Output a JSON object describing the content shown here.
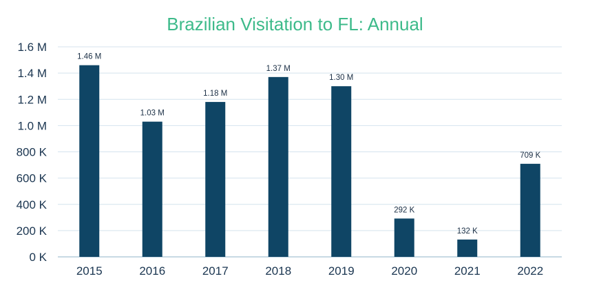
{
  "chart_data": {
    "type": "bar",
    "title": "Brazilian Visitation to FL: Annual",
    "categories": [
      "2015",
      "2016",
      "2017",
      "2018",
      "2019",
      "2020",
      "2021",
      "2022"
    ],
    "values": [
      1460000,
      1030000,
      1180000,
      1370000,
      1300000,
      292000,
      132000,
      709000
    ],
    "data_labels": [
      "1.46 M",
      "1.03 M",
      "1.18 M",
      "1.37 M",
      "1.30 M",
      "292 K",
      "132 K",
      "709 K"
    ],
    "ylim": [
      0,
      1600000
    ],
    "yticks": [
      0,
      200000,
      400000,
      600000,
      800000,
      1000000,
      1200000,
      1400000,
      1600000
    ],
    "ytick_labels": [
      "0 K",
      "200 K",
      "400 K",
      "600 K",
      "800 K",
      "1.0 M",
      "1.2 M",
      "1.4 M",
      "1.6 M"
    ],
    "xlabel": "",
    "ylabel": "",
    "grid": true,
    "legend": "none",
    "colors": {
      "bar": "#0f4565",
      "title": "#3dba8a",
      "grid": "#d4e3ee",
      "axis": "#1a3550"
    }
  }
}
